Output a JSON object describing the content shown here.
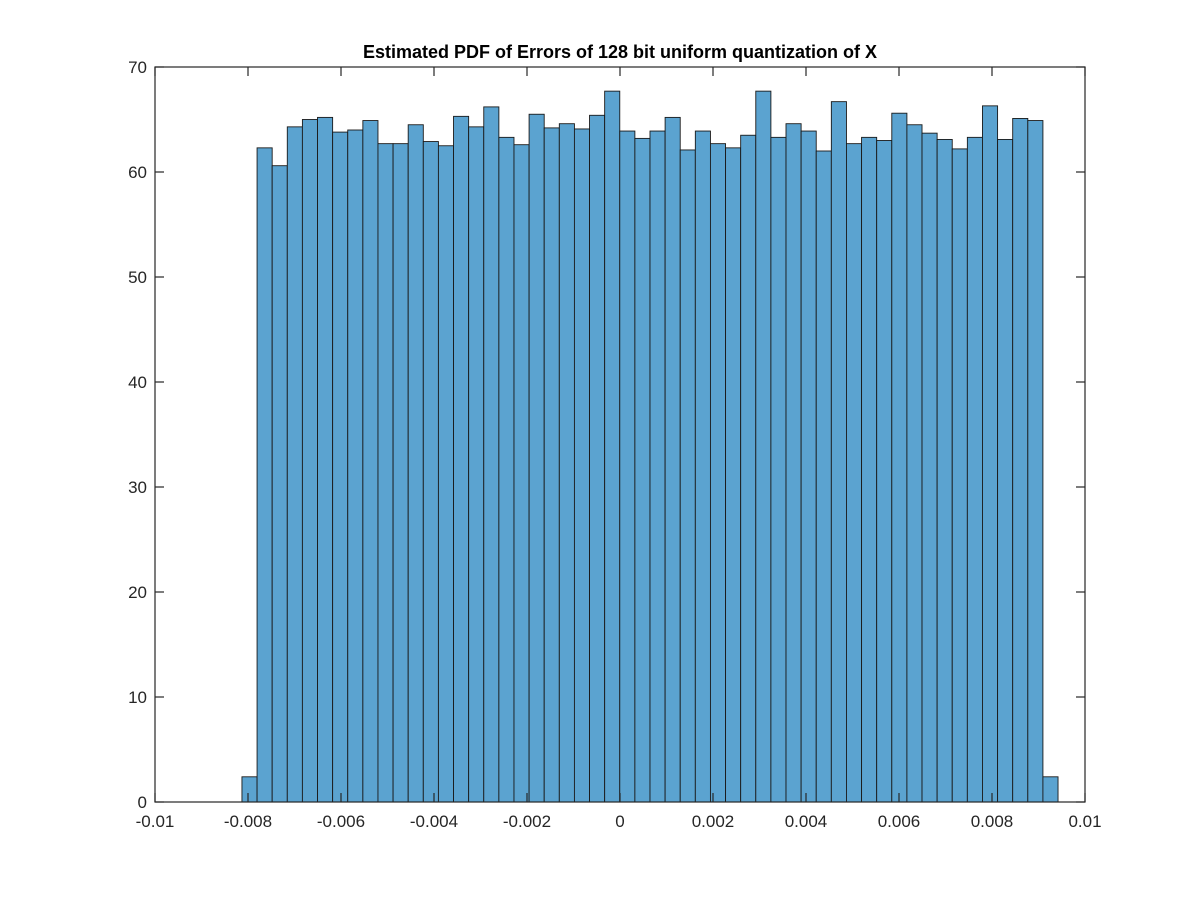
{
  "chart_data": {
    "type": "bar",
    "title": "Estimated PDF of Errors of 128 bit uniform quantization of X",
    "xlabel": "",
    "ylabel": "",
    "xlim": [
      -0.01,
      0.01
    ],
    "ylim": [
      0,
      70
    ],
    "xticks": [
      -0.01,
      -0.008,
      -0.006,
      -0.004,
      -0.002,
      0,
      0.002,
      0.004,
      0.006,
      0.008,
      0.01
    ],
    "xtick_labels": [
      "-0.01",
      "-0.008",
      "-0.006",
      "-0.004",
      "-0.002",
      "0",
      "0.002",
      "0.004",
      "0.006",
      "0.008",
      "0.01"
    ],
    "yticks": [
      0,
      10,
      20,
      30,
      40,
      50,
      60,
      70
    ],
    "ytick_labels": [
      "0",
      "10",
      "20",
      "30",
      "40",
      "50",
      "60",
      "70"
    ],
    "bin_start": -0.00813,
    "bin_width": 0.000325,
    "values": [
      2.4,
      62.3,
      60.6,
      64.3,
      65.0,
      65.2,
      63.8,
      64.0,
      64.9,
      62.7,
      62.7,
      64.5,
      62.9,
      62.5,
      65.3,
      64.3,
      66.2,
      63.3,
      62.6,
      65.5,
      64.2,
      64.6,
      64.1,
      65.4,
      67.7,
      63.9,
      63.2,
      63.9,
      65.2,
      62.1,
      63.9,
      62.7,
      62.3,
      63.5,
      67.7,
      63.3,
      64.6,
      63.9,
      62.0,
      66.7,
      62.7,
      63.3,
      63.0,
      65.6,
      64.5,
      63.7,
      63.1,
      62.2,
      63.3,
      66.3,
      63.1,
      65.1,
      64.9,
      2.4
    ],
    "bar_color": "#5ba3d0",
    "edge_color": "#1a1a1a",
    "grid": false,
    "box": true
  }
}
